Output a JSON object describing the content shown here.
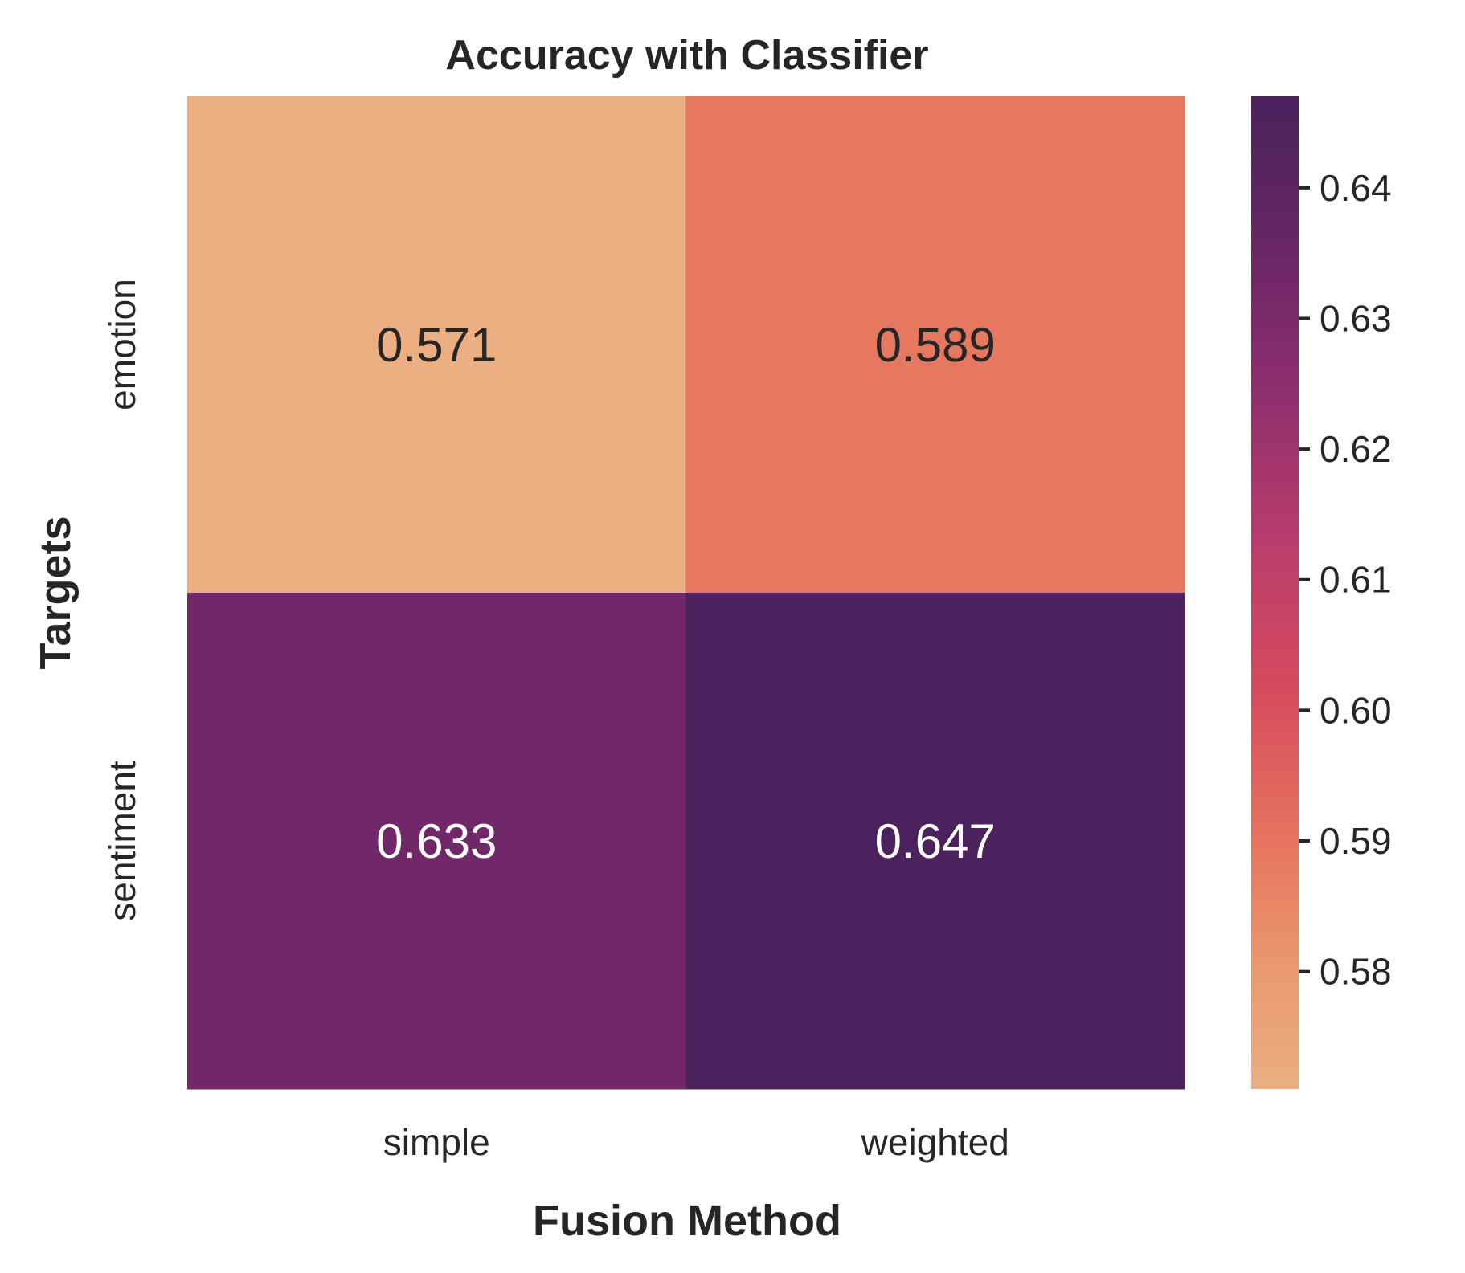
{
  "chart_data": {
    "type": "heatmap",
    "title": "Accuracy with Classifier",
    "xlabel": "Fusion Method",
    "ylabel": "Targets",
    "x_categories": [
      "simple",
      "weighted"
    ],
    "y_categories": [
      "emotion",
      "sentiment"
    ],
    "values": [
      [
        0.571,
        0.589
      ],
      [
        0.633,
        0.647
      ]
    ],
    "value_labels": [
      [
        "0.571",
        "0.589"
      ],
      [
        "0.633",
        "0.647"
      ]
    ],
    "colormap": "flare",
    "colorbar": {
      "vmin": 0.571,
      "vmax": 0.647,
      "ticks": [
        0.58,
        0.59,
        0.6,
        0.61,
        0.62,
        0.63,
        0.64
      ],
      "tick_labels": [
        "0.58",
        "0.59",
        "0.60",
        "0.61",
        "0.62",
        "0.63",
        "0.64"
      ]
    },
    "colors": {
      "text_dark": "#262626",
      "text_light": "#ffffff"
    },
    "grid": false
  }
}
